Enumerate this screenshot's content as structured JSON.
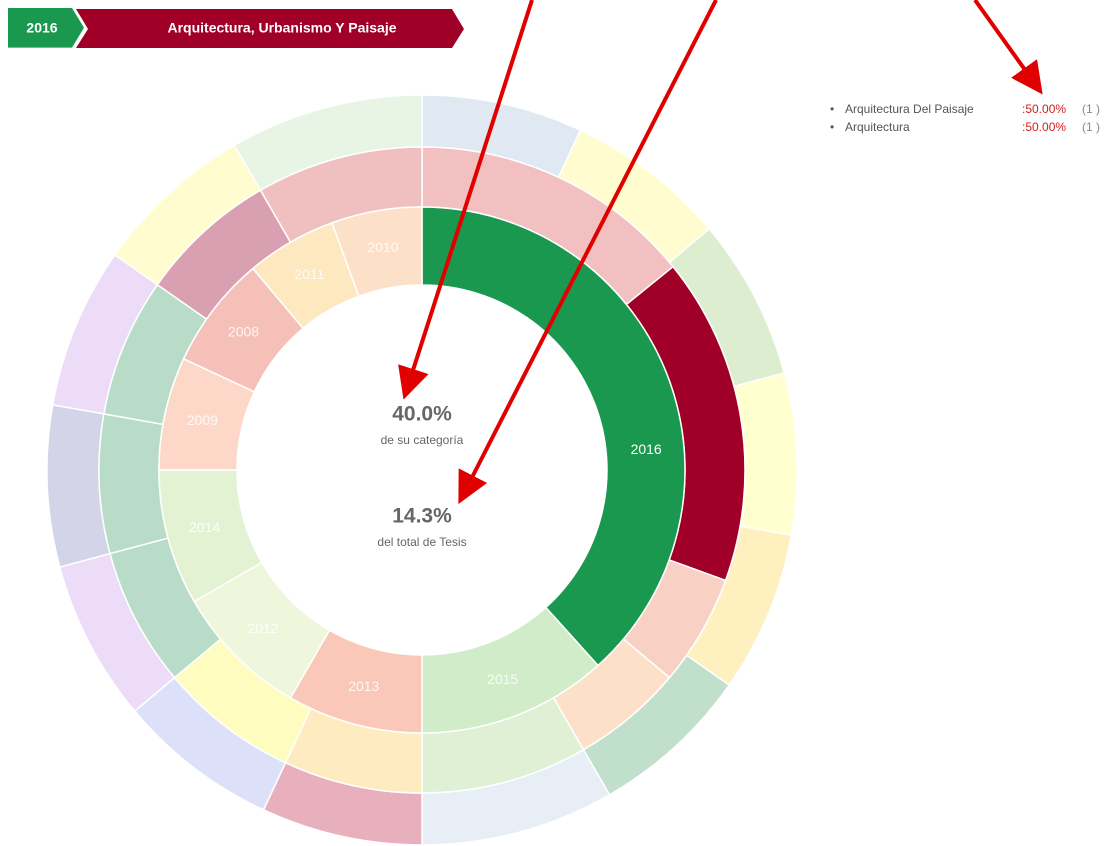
{
  "breadcrumb": {
    "year": "2016",
    "category": "Arquitectura, Urbanismo Y Paisaje"
  },
  "center": {
    "category_pct": "40.0%",
    "category_caption": "de su categoría",
    "total_pct": "14.3%",
    "total_caption": "del total de Tesis"
  },
  "inner_ring_labels": [
    "2016",
    "2015",
    "2013",
    "2012",
    "2014",
    "2009",
    "2008",
    "2011",
    "2010"
  ],
  "legend": [
    {
      "name": "Arquitectura Del Paisaje",
      "pct": ":50.00%",
      "count": "(1 )"
    },
    {
      "name": "Arquitectura",
      "pct": ":50.00%",
      "count": "(1 )"
    }
  ]
}
